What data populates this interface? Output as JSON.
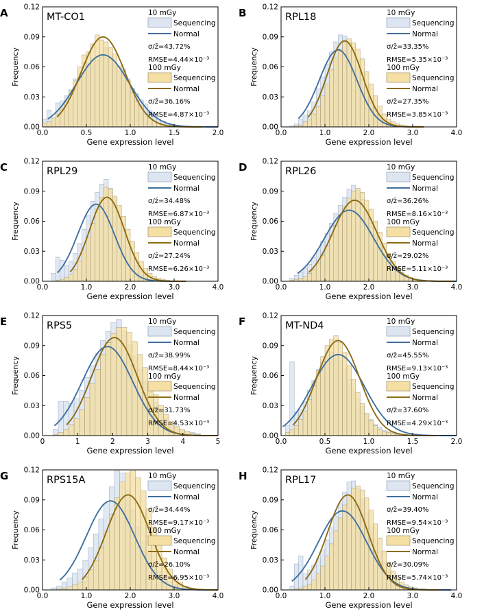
{
  "figure": {
    "ylabel": "Frequency",
    "xlabel": "Gene expression level"
  },
  "legend": {
    "series_labels": [
      "Sequencing",
      "Normal"
    ]
  },
  "colors": {
    "bar10_fill": "#dde5f1",
    "bar10_stroke": "#9aa9c0",
    "bar100_fill": "#f5dfa3",
    "bar100_stroke": "#a89a76",
    "normal10": "#3f6f9f",
    "normal100": "#8c6a12"
  },
  "chart_data": [
    {
      "type": "bar",
      "panel": "A",
      "title": "MT-CO1",
      "xlim": [
        0,
        2
      ],
      "xticks": [
        "0.0",
        "0.5",
        "1.0",
        "1.5",
        "2.0"
      ],
      "ylim": [
        0,
        0.12
      ],
      "yticks": [
        "0.00",
        "0.03",
        "0.06",
        "0.09",
        "0.12"
      ],
      "series": [
        {
          "name": "10 mGy",
          "dose": "10 mGy",
          "mu": 0.69,
          "sigma": 0.3,
          "peak": 0.072,
          "bin_start": 0.0,
          "bin_width": 0.05,
          "values": [
            0.008,
            0.017,
            0.009,
            0.024,
            0.026,
            0.031,
            0.037,
            0.048,
            0.054,
            0.065,
            0.063,
            0.069,
            0.066,
            0.07,
            0.079,
            0.068,
            0.063,
            0.056,
            0.058,
            0.048,
            0.039,
            0.033,
            0.027,
            0.023,
            0.016,
            0.013,
            0.008,
            0.006,
            0.004,
            0.002,
            0.001,
            0.001
          ],
          "cv": "σ/z̄=43.72%",
          "rmse": "RMSE=4.44×10⁻³"
        },
        {
          "name": "100 mGy",
          "dose": "100 mGy",
          "mu": 0.69,
          "sigma": 0.25,
          "peak": 0.09,
          "bin_start": 0.0,
          "bin_width": 0.05,
          "values": [
            0.004,
            0.005,
            0.009,
            0.013,
            0.019,
            0.026,
            0.037,
            0.046,
            0.06,
            0.072,
            0.075,
            0.083,
            0.092,
            0.087,
            0.085,
            0.079,
            0.073,
            0.061,
            0.055,
            0.046,
            0.034,
            0.026,
            0.021,
            0.013,
            0.009,
            0.006,
            0.004,
            0.002,
            0.001,
            0.001,
            0.001,
            0.0
          ],
          "cv": "σ/z̄=36.16%",
          "rmse": "RMSE=4.87×10⁻³"
        }
      ]
    },
    {
      "type": "bar",
      "panel": "B",
      "title": "RPL18",
      "xlim": [
        0,
        4
      ],
      "xticks": [
        "0.0",
        "1.0",
        "2.0",
        "3.0",
        "4.0"
      ],
      "ylim": [
        0,
        0.12
      ],
      "yticks": [
        "0.00",
        "0.03",
        "0.06",
        "0.09",
        "0.12"
      ],
      "series": [
        {
          "name": "10 mGy",
          "dose": "10 mGy",
          "mu": 1.3,
          "sigma": 0.43,
          "peak": 0.077,
          "bin_start": 0.2,
          "bin_width": 0.1,
          "values": [
            0.001,
            0.003,
            0.008,
            0.012,
            0.016,
            0.025,
            0.038,
            0.05,
            0.063,
            0.075,
            0.085,
            0.092,
            0.091,
            0.084,
            0.074,
            0.06,
            0.048,
            0.036,
            0.027,
            0.018,
            0.012,
            0.008,
            0.006,
            0.004,
            0.002,
            0.001,
            0.001
          ],
          "cv": "σ/z̄=33.35%",
          "rmse": "RMSE=5.35×10⁻³"
        },
        {
          "name": "100 mGy",
          "dose": "100 mGy",
          "mu": 1.45,
          "sigma": 0.4,
          "peak": 0.086,
          "bin_start": 0.2,
          "bin_width": 0.1,
          "values": [
            0.0,
            0.001,
            0.002,
            0.005,
            0.008,
            0.013,
            0.02,
            0.031,
            0.043,
            0.057,
            0.069,
            0.078,
            0.085,
            0.088,
            0.084,
            0.078,
            0.068,
            0.055,
            0.043,
            0.031,
            0.021,
            0.013,
            0.008,
            0.005,
            0.003,
            0.002,
            0.001
          ],
          "cv": "σ/z̄=27.35%",
          "rmse": "RMSE=3.85×10⁻³"
        }
      ]
    },
    {
      "type": "bar",
      "panel": "C",
      "title": "RPL29",
      "xlim": [
        0,
        4
      ],
      "xticks": [
        "0.0",
        "1.0",
        "2.0",
        "3.0",
        "4.0"
      ],
      "ylim": [
        0,
        0.12
      ],
      "yticks": [
        "0.00",
        "0.03",
        "0.06",
        "0.09",
        "0.12"
      ],
      "series": [
        {
          "name": "10 mGy",
          "dose": "10 mGy",
          "mu": 1.22,
          "sigma": 0.42,
          "peak": 0.077,
          "bin_start": 0.2,
          "bin_width": 0.1,
          "values": [
            0.008,
            0.024,
            0.021,
            0.016,
            0.02,
            0.028,
            0.038,
            0.052,
            0.066,
            0.08,
            0.089,
            0.097,
            0.102,
            0.093,
            0.083,
            0.066,
            0.05,
            0.035,
            0.024,
            0.016,
            0.01,
            0.006,
            0.004,
            0.002,
            0.001,
            0.001,
            0.0
          ],
          "cv": "σ/z̄=34.48%",
          "rmse": "RMSE=6.87×10⁻³"
        },
        {
          "name": "100 mGy",
          "dose": "100 mGy",
          "mu": 1.47,
          "sigma": 0.4,
          "peak": 0.084,
          "bin_start": 0.2,
          "bin_width": 0.1,
          "values": [
            0.0,
            0.001,
            0.002,
            0.004,
            0.007,
            0.012,
            0.02,
            0.031,
            0.044,
            0.058,
            0.072,
            0.084,
            0.094,
            0.092,
            0.085,
            0.076,
            0.065,
            0.052,
            0.04,
            0.029,
            0.02,
            0.013,
            0.008,
            0.005,
            0.003,
            0.002,
            0.001
          ],
          "cv": "σ/z̄=27.24%",
          "rmse": "RMSE=6.26×10⁻³"
        }
      ]
    },
    {
      "type": "bar",
      "panel": "D",
      "title": "RPL26",
      "xlim": [
        0,
        4
      ],
      "xticks": [
        "0.0",
        "1.0",
        "2.0",
        "3.0",
        "4.0"
      ],
      "ylim": [
        0,
        0.12
      ],
      "yticks": [
        "0.00",
        "0.03",
        "0.06",
        "0.09",
        "0.12"
      ],
      "series": [
        {
          "name": "10 mGy",
          "dose": "10 mGy",
          "mu": 1.55,
          "sigma": 0.56,
          "peak": 0.071,
          "bin_start": 0.2,
          "bin_width": 0.1,
          "values": [
            0.003,
            0.006,
            0.009,
            0.013,
            0.017,
            0.024,
            0.031,
            0.04,
            0.048,
            0.058,
            0.068,
            0.076,
            0.084,
            0.092,
            0.096,
            0.091,
            0.082,
            0.07,
            0.058,
            0.047,
            0.037,
            0.028,
            0.02,
            0.014,
            0.01,
            0.007,
            0.005,
            0.003,
            0.002,
            0.001,
            0.001
          ],
          "cv": "σ/z̄=36.26%",
          "rmse": "RMSE=8.16×10⁻³"
        },
        {
          "name": "100 mGy",
          "dose": "100 mGy",
          "mu": 1.68,
          "sigma": 0.5,
          "peak": 0.081,
          "bin_start": 0.2,
          "bin_width": 0.1,
          "values": [
            0.001,
            0.002,
            0.003,
            0.005,
            0.008,
            0.012,
            0.018,
            0.026,
            0.035,
            0.046,
            0.056,
            0.066,
            0.075,
            0.083,
            0.09,
            0.093,
            0.089,
            0.081,
            0.072,
            0.06,
            0.049,
            0.038,
            0.028,
            0.02,
            0.014,
            0.009,
            0.006,
            0.004,
            0.002,
            0.001,
            0.001
          ],
          "cv": "σ/z̄=29.02%",
          "rmse": "RMSE=5.11×10⁻³"
        }
      ]
    },
    {
      "type": "bar",
      "panel": "E",
      "title": "RPS5",
      "xlim": [
        0,
        5
      ],
      "xticks": [
        "0",
        "1",
        "2",
        "3",
        "4",
        "5"
      ],
      "ylim": [
        0,
        0.12
      ],
      "yticks": [
        "0.00",
        "0.03",
        "0.06",
        "0.09",
        "0.12"
      ],
      "series": [
        {
          "name": "10 mGy",
          "dose": "10 mGy",
          "mu": 1.85,
          "sigma": 0.72,
          "peak": 0.089,
          "bin_start": 0.3,
          "bin_width": 0.15,
          "values": [
            0.006,
            0.034,
            0.034,
            0.032,
            0.037,
            0.045,
            0.058,
            0.07,
            0.082,
            0.095,
            0.104,
            0.113,
            0.116,
            0.104,
            0.091,
            0.079,
            0.066,
            0.054,
            0.043,
            0.033,
            0.025,
            0.018,
            0.013,
            0.009,
            0.006,
            0.004,
            0.003,
            0.002
          ],
          "cv": "σ/z̄=38.99%",
          "rmse": "RMSE=8.44×10⁻³"
        },
        {
          "name": "100 mGy",
          "dose": "100 mGy",
          "mu": 2.05,
          "sigma": 0.65,
          "peak": 0.098,
          "bin_start": 0.3,
          "bin_width": 0.15,
          "values": [
            0.001,
            0.003,
            0.006,
            0.011,
            0.017,
            0.026,
            0.038,
            0.052,
            0.066,
            0.081,
            0.093,
            0.102,
            0.108,
            0.108,
            0.103,
            0.094,
            0.081,
            0.068,
            0.054,
            0.041,
            0.03,
            0.021,
            0.014,
            0.009,
            0.006,
            0.004,
            0.002,
            0.001
          ],
          "cv": "σ/z̄=31.73%",
          "rmse": "RMSE=4.53×10⁻³"
        }
      ]
    },
    {
      "type": "bar",
      "panel": "F",
      "title": "MT-ND4",
      "xlim": [
        0,
        2
      ],
      "xticks": [
        "0.0",
        "0.5",
        "1.0",
        "1.5",
        "2.0"
      ],
      "ylim": [
        0,
        0.12
      ],
      "yticks": [
        "0.00",
        "0.03",
        "0.06",
        "0.09",
        "0.12"
      ],
      "series": [
        {
          "name": "10 mGy",
          "dose": "10 mGy",
          "mu": 0.65,
          "sigma": 0.3,
          "peak": 0.081,
          "bin_start": 0.05,
          "bin_width": 0.05,
          "values": [
            0.01,
            0.074,
            0.024,
            0.026,
            0.034,
            0.045,
            0.055,
            0.066,
            0.074,
            0.08,
            0.083,
            0.08,
            0.074,
            0.066,
            0.056,
            0.046,
            0.037,
            0.029,
            0.022,
            0.016,
            0.011,
            0.008,
            0.005,
            0.004,
            0.003,
            0.002,
            0.001,
            0.001
          ],
          "cv": "σ/z̄=45.55%",
          "rmse": "RMSE=9.13×10⁻³"
        },
        {
          "name": "100 mGy",
          "dose": "100 mGy",
          "mu": 0.65,
          "sigma": 0.245,
          "peak": 0.095,
          "bin_start": 0.05,
          "bin_width": 0.05,
          "values": [
            0.003,
            0.006,
            0.01,
            0.016,
            0.024,
            0.036,
            0.05,
            0.065,
            0.079,
            0.09,
            0.096,
            0.1,
            0.093,
            0.083,
            0.07,
            0.056,
            0.043,
            0.032,
            0.022,
            0.015,
            0.01,
            0.006,
            0.004,
            0.003,
            0.002,
            0.001,
            0.001,
            0.0
          ],
          "cv": "σ/z̄=37.60%",
          "rmse": "RMSE=4.29×10⁻³"
        }
      ]
    },
    {
      "type": "bar",
      "panel": "G",
      "title": "RPS15A",
      "xlim": [
        0,
        4
      ],
      "xticks": [
        "0.0",
        "1.0",
        "2.0",
        "3.0",
        "4.0"
      ],
      "ylim": [
        0,
        0.12
      ],
      "yticks": [
        "0.00",
        "0.03",
        "0.06",
        "0.09",
        "0.12"
      ],
      "series": [
        {
          "name": "10 mGy",
          "dose": "10 mGy",
          "mu": 1.55,
          "sigma": 0.55,
          "peak": 0.089,
          "bin_start": 0.2,
          "bin_width": 0.12,
          "values": [
            0.002,
            0.004,
            0.008,
            0.012,
            0.017,
            0.021,
            0.03,
            0.042,
            0.056,
            0.071,
            0.086,
            0.103,
            0.119,
            0.117,
            0.099,
            0.08,
            0.063,
            0.048,
            0.036,
            0.026,
            0.018,
            0.012,
            0.008,
            0.005,
            0.003,
            0.002,
            0.001
          ],
          "cv": "σ/z̄=34.44%",
          "rmse": "RMSE=9.17×10⁻³"
        },
        {
          "name": "100 mGy",
          "dose": "100 mGy",
          "mu": 1.95,
          "sigma": 0.5,
          "peak": 0.095,
          "bin_start": 0.2,
          "bin_width": 0.12,
          "values": [
            0.0,
            0.001,
            0.002,
            0.003,
            0.005,
            0.008,
            0.013,
            0.02,
            0.03,
            0.043,
            0.058,
            0.075,
            0.092,
            0.108,
            0.117,
            0.12,
            0.112,
            0.099,
            0.081,
            0.063,
            0.046,
            0.032,
            0.021,
            0.013,
            0.008,
            0.004,
            0.002
          ],
          "cv": "σ/z̄=26.10%",
          "rmse": "RMSE=6.95×10⁻³"
        }
      ]
    },
    {
      "type": "bar",
      "panel": "H",
      "title": "RPL17",
      "xlim": [
        0,
        4
      ],
      "xticks": [
        "0.0",
        "1.0",
        "2.0",
        "3.0",
        "4.0"
      ],
      "ylim": [
        0,
        0.12
      ],
      "yticks": [
        "0.00",
        "0.03",
        "0.06",
        "0.09",
        "0.12"
      ],
      "series": [
        {
          "name": "10 mGy",
          "dose": "10 mGy",
          "mu": 1.4,
          "sigma": 0.55,
          "peak": 0.079,
          "bin_start": 0.2,
          "bin_width": 0.1,
          "values": [
            0.004,
            0.026,
            0.034,
            0.016,
            0.02,
            0.025,
            0.031,
            0.04,
            0.05,
            0.062,
            0.074,
            0.086,
            0.098,
            0.108,
            0.109,
            0.101,
            0.09,
            0.077,
            0.063,
            0.05,
            0.038,
            0.028,
            0.02,
            0.014,
            0.009,
            0.006,
            0.004,
            0.003,
            0.002,
            0.001,
            0.001
          ],
          "cv": "σ/z̄=39.40%",
          "rmse": "RMSE=9.54×10⁻³"
        },
        {
          "name": "100 mGy",
          "dose": "100 mGy",
          "mu": 1.52,
          "sigma": 0.46,
          "peak": 0.095,
          "bin_start": 0.2,
          "bin_width": 0.1,
          "values": [
            0.0,
            0.001,
            0.002,
            0.004,
            0.006,
            0.01,
            0.016,
            0.024,
            0.034,
            0.046,
            0.059,
            0.072,
            0.085,
            0.095,
            0.102,
            0.104,
            0.1,
            0.092,
            0.08,
            0.066,
            0.052,
            0.039,
            0.028,
            0.019,
            0.012,
            0.008,
            0.005,
            0.003,
            0.002,
            0.001,
            0.001
          ],
          "cv": "σ/z̄=30.09%",
          "rmse": "RMSE=5.74×10⁻³"
        }
      ]
    }
  ]
}
